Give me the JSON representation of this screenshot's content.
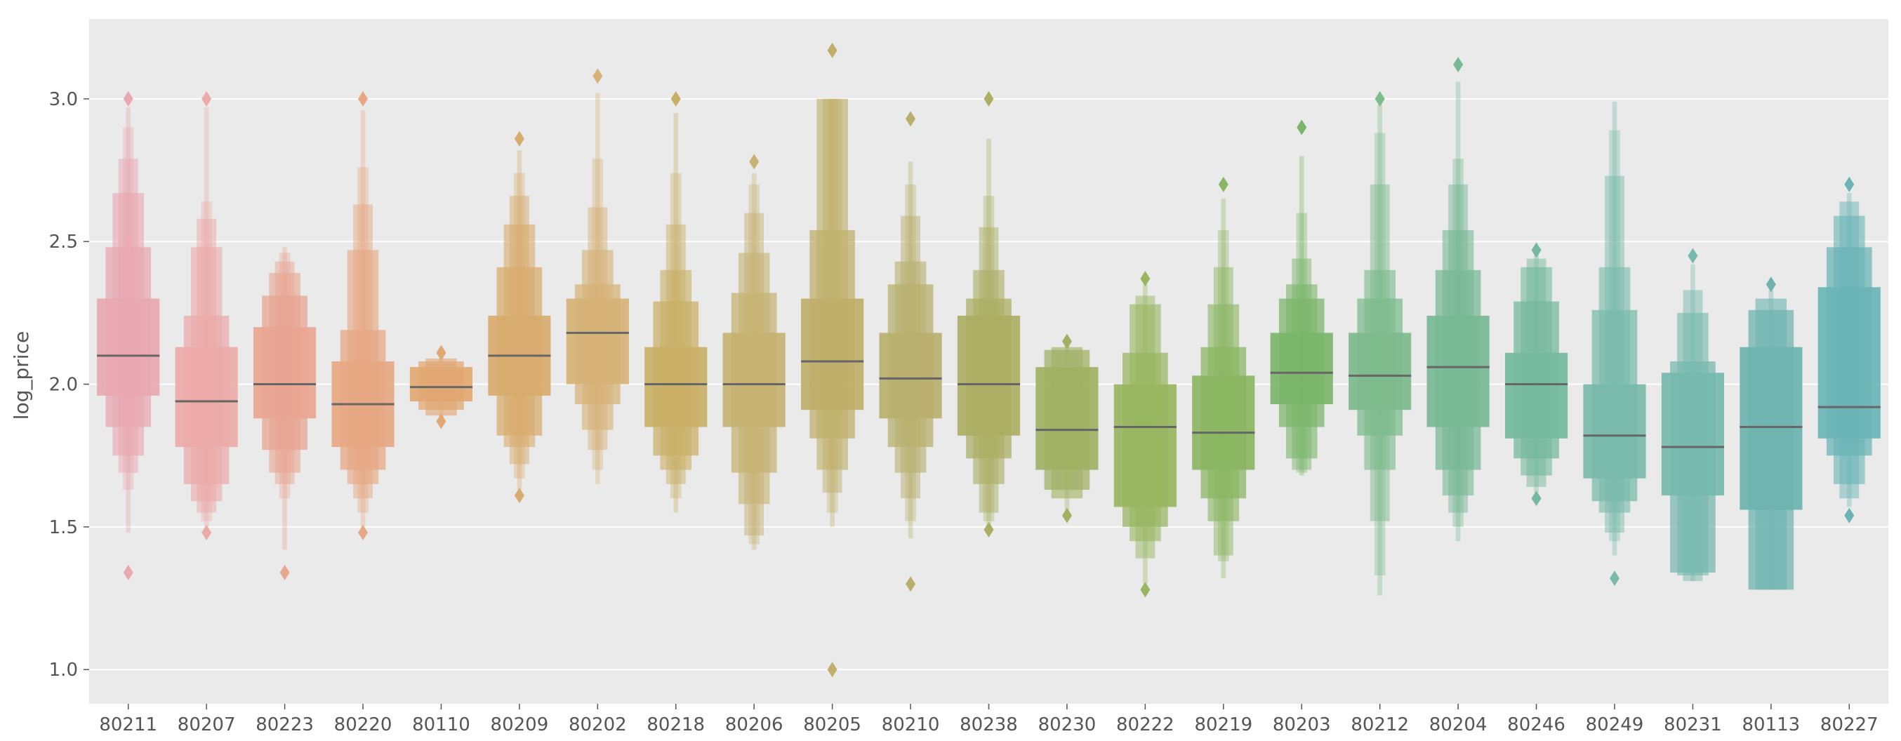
{
  "chart_data": {
    "type": "boxenplot",
    "title": "",
    "xlabel": "",
    "ylabel": "log_price",
    "ylim": [
      0.88,
      3.28
    ],
    "yticks": [
      "1.0",
      "1.5",
      "2.0",
      "2.5",
      "3.0"
    ],
    "grid": true,
    "legend": "none",
    "background": "#EAEAEA",
    "categories": [
      {
        "name": "80211",
        "color": "#E8A7B1",
        "median": 2.1,
        "boxes": [
          [
            1.96,
            2.3
          ],
          [
            1.85,
            2.48
          ],
          [
            1.75,
            2.67
          ],
          [
            1.69,
            2.79
          ],
          [
            1.63,
            2.9
          ]
        ],
        "whisker": [
          1.48,
          2.97
        ],
        "outliers": [
          1.34,
          3.0
        ]
      },
      {
        "name": "80207",
        "color": "#EBAAA8",
        "median": 1.94,
        "boxes": [
          [
            1.78,
            2.13
          ],
          [
            1.65,
            2.24
          ],
          [
            1.59,
            2.48
          ],
          [
            1.55,
            2.58
          ],
          [
            1.52,
            2.64
          ]
        ],
        "whisker": [
          1.5,
          2.97
        ],
        "outliers": [
          1.48,
          3.0
        ]
      },
      {
        "name": "80223",
        "color": "#E8A592",
        "median": 2.0,
        "boxes": [
          [
            1.88,
            2.2
          ],
          [
            1.77,
            2.31
          ],
          [
            1.69,
            2.39
          ],
          [
            1.65,
            2.43
          ],
          [
            1.6,
            2.46
          ]
        ],
        "whisker": [
          1.42,
          2.48
        ],
        "outliers": [
          1.34
        ]
      },
      {
        "name": "80220",
        "color": "#E7A783",
        "median": 1.93,
        "boxes": [
          [
            1.78,
            2.08
          ],
          [
            1.7,
            2.19
          ],
          [
            1.65,
            2.47
          ],
          [
            1.6,
            2.63
          ],
          [
            1.55,
            2.76
          ]
        ],
        "whisker": [
          1.5,
          2.96
        ],
        "outliers": [
          1.48,
          3.0
        ]
      },
      {
        "name": "80110",
        "color": "#E2A772",
        "median": 1.99,
        "boxes": [
          [
            1.94,
            2.06
          ],
          [
            1.91,
            2.08
          ],
          [
            1.89,
            2.09
          ]
        ],
        "whisker": [
          1.88,
          2.1
        ],
        "outliers": [
          1.87,
          2.11
        ]
      },
      {
        "name": "80209",
        "color": "#D8AB6E",
        "median": 2.1,
        "boxes": [
          [
            1.96,
            2.24
          ],
          [
            1.82,
            2.41
          ],
          [
            1.78,
            2.56
          ],
          [
            1.72,
            2.66
          ],
          [
            1.67,
            2.74
          ]
        ],
        "whisker": [
          1.63,
          2.82
        ],
        "outliers": [
          1.61,
          2.86
        ]
      },
      {
        "name": "80202",
        "color": "#D6B277",
        "median": 2.18,
        "boxes": [
          [
            2.0,
            2.3
          ],
          [
            1.93,
            2.35
          ],
          [
            1.84,
            2.47
          ],
          [
            1.77,
            2.62
          ],
          [
            1.7,
            2.79
          ]
        ],
        "whisker": [
          1.65,
          3.02
        ],
        "outliers": [
          3.08
        ]
      },
      {
        "name": "80218",
        "color": "#C9AF66",
        "median": 2.0,
        "boxes": [
          [
            1.85,
            2.13
          ],
          [
            1.75,
            2.29
          ],
          [
            1.7,
            2.4
          ],
          [
            1.65,
            2.56
          ],
          [
            1.6,
            2.74
          ]
        ],
        "whisker": [
          1.55,
          2.95
        ],
        "outliers": [
          3.0
        ]
      },
      {
        "name": "80206",
        "color": "#C6B272",
        "median": 2.0,
        "boxes": [
          [
            1.85,
            2.18
          ],
          [
            1.69,
            2.32
          ],
          [
            1.58,
            2.46
          ],
          [
            1.47,
            2.6
          ],
          [
            1.44,
            2.7
          ]
        ],
        "whisker": [
          1.42,
          2.74
        ],
        "outliers": [
          2.78
        ]
      },
      {
        "name": "80205",
        "color": "#BFAF6A",
        "median": 2.08,
        "boxes": [
          [
            1.91,
            2.3
          ],
          [
            1.81,
            2.54
          ],
          [
            1.7,
            3.0
          ],
          [
            1.62,
            3.0
          ],
          [
            1.55,
            3.0
          ]
        ],
        "whisker": [
          1.5,
          3.0
        ],
        "outliers": [
          1.0,
          3.17
        ]
      },
      {
        "name": "80210",
        "color": "#B8AF6E",
        "median": 2.02,
        "boxes": [
          [
            1.88,
            2.18
          ],
          [
            1.78,
            2.35
          ],
          [
            1.69,
            2.43
          ],
          [
            1.6,
            2.59
          ],
          [
            1.52,
            2.7
          ]
        ],
        "whisker": [
          1.46,
          2.78
        ],
        "outliers": [
          1.3,
          2.93
        ]
      },
      {
        "name": "80238",
        "color": "#ABAE63",
        "median": 2.0,
        "boxes": [
          [
            1.82,
            2.24
          ],
          [
            1.74,
            2.3
          ],
          [
            1.65,
            2.4
          ],
          [
            1.55,
            2.55
          ],
          [
            1.52,
            2.66
          ]
        ],
        "whisker": [
          1.5,
          2.86
        ],
        "outliers": [
          1.49,
          3.0
        ]
      },
      {
        "name": "80230",
        "color": "#A2B063",
        "median": 1.84,
        "boxes": [
          [
            1.7,
            2.06
          ],
          [
            1.63,
            2.12
          ],
          [
            1.6,
            2.13
          ]
        ],
        "whisker": [
          1.56,
          2.14
        ],
        "outliers": [
          1.54,
          2.15
        ]
      },
      {
        "name": "80222",
        "color": "#98B560",
        "median": 1.85,
        "boxes": [
          [
            1.57,
            2.0
          ],
          [
            1.5,
            2.11
          ],
          [
            1.45,
            2.28
          ],
          [
            1.39,
            2.31
          ]
        ],
        "whisker": [
          1.3,
          2.35
        ],
        "outliers": [
          1.28,
          2.37
        ]
      },
      {
        "name": "80219",
        "color": "#8BB562",
        "median": 1.83,
        "boxes": [
          [
            1.7,
            2.03
          ],
          [
            1.6,
            2.13
          ],
          [
            1.52,
            2.28
          ],
          [
            1.4,
            2.41
          ],
          [
            1.38,
            2.54
          ]
        ],
        "whisker": [
          1.32,
          2.65
        ],
        "outliers": [
          2.7
        ]
      },
      {
        "name": "80203",
        "color": "#7BB56A",
        "median": 2.04,
        "boxes": [
          [
            1.93,
            2.18
          ],
          [
            1.85,
            2.3
          ],
          [
            1.74,
            2.35
          ],
          [
            1.7,
            2.44
          ],
          [
            1.69,
            2.6
          ]
        ],
        "whisker": [
          1.68,
          2.8
        ],
        "outliers": [
          2.9
        ]
      },
      {
        "name": "80212",
        "color": "#7DBA8C",
        "median": 2.03,
        "boxes": [
          [
            1.91,
            2.18
          ],
          [
            1.82,
            2.3
          ],
          [
            1.7,
            2.4
          ],
          [
            1.52,
            2.7
          ],
          [
            1.33,
            2.88
          ]
        ],
        "whisker": [
          1.26,
          2.98
        ],
        "outliers": [
          3.0
        ]
      },
      {
        "name": "80204",
        "color": "#77B895",
        "median": 2.06,
        "boxes": [
          [
            1.85,
            2.24
          ],
          [
            1.7,
            2.4
          ],
          [
            1.61,
            2.54
          ],
          [
            1.55,
            2.7
          ],
          [
            1.5,
            2.79
          ]
        ],
        "whisker": [
          1.45,
          3.06
        ],
        "outliers": [
          3.12
        ]
      },
      {
        "name": "80246",
        "color": "#74B89E",
        "median": 2.0,
        "boxes": [
          [
            1.81,
            2.11
          ],
          [
            1.74,
            2.29
          ],
          [
            1.68,
            2.41
          ],
          [
            1.64,
            2.44
          ]
        ],
        "whisker": [
          1.62,
          2.46
        ],
        "outliers": [
          1.6,
          2.47
        ]
      },
      {
        "name": "80249",
        "color": "#79BAAA",
        "median": 1.82,
        "boxes": [
          [
            1.67,
            2.0
          ],
          [
            1.59,
            2.26
          ],
          [
            1.55,
            2.41
          ],
          [
            1.48,
            2.73
          ],
          [
            1.45,
            2.89
          ]
        ],
        "whisker": [
          1.4,
          2.99
        ],
        "outliers": [
          1.32
        ]
      },
      {
        "name": "80231",
        "color": "#76B8AE",
        "median": 1.78,
        "boxes": [
          [
            1.61,
            2.04
          ],
          [
            1.34,
            2.08
          ],
          [
            1.33,
            2.25
          ],
          [
            1.31,
            2.33
          ]
        ],
        "whisker": [
          1.31,
          2.42
        ],
        "outliers": [
          2.45
        ]
      },
      {
        "name": "80113",
        "color": "#6EB3AF",
        "median": 1.85,
        "boxes": [
          [
            1.56,
            2.13
          ],
          [
            1.28,
            2.26
          ],
          [
            1.28,
            2.3
          ]
        ],
        "whisker": [
          1.28,
          2.33
        ],
        "outliers": [
          2.35
        ]
      },
      {
        "name": "80227",
        "color": "#6AB4B5",
        "median": 1.92,
        "boxes": [
          [
            1.81,
            2.34
          ],
          [
            1.75,
            2.48
          ],
          [
            1.65,
            2.59
          ],
          [
            1.6,
            2.64
          ]
        ],
        "whisker": [
          1.57,
          2.67
        ],
        "outliers": [
          1.54,
          2.7
        ]
      }
    ]
  }
}
